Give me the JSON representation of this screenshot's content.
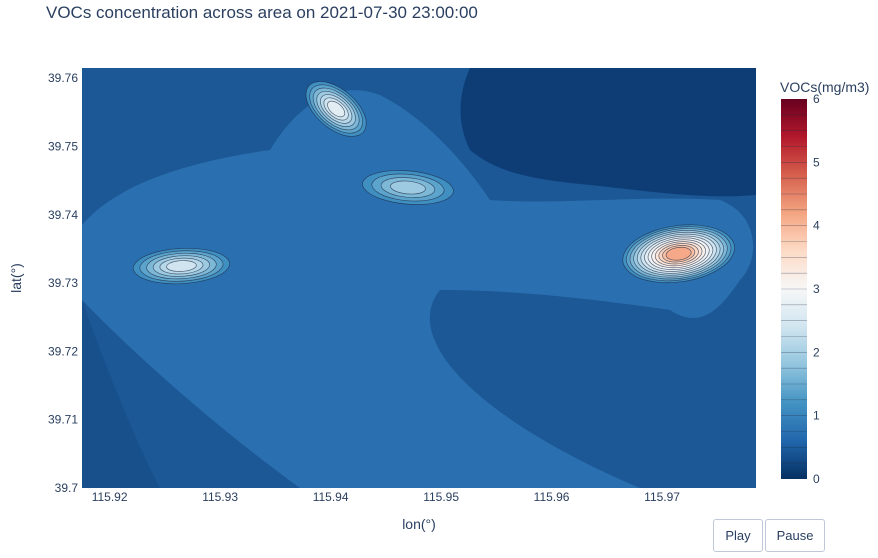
{
  "chart_data": {
    "type": "contour",
    "title": "VOCs concentration across area on 2021-07-30 23:00:00",
    "xlabel": "lon(°)",
    "ylabel": "lat(°)",
    "xlim": [
      115.9175,
      115.9785
    ],
    "ylim": [
      39.7,
      39.7615
    ],
    "x_ticks": [
      "115.92",
      "115.93",
      "115.94",
      "115.95",
      "115.96",
      "115.97"
    ],
    "x_tick_values": [
      115.92,
      115.93,
      115.94,
      115.95,
      115.96,
      115.97
    ],
    "y_ticks": [
      "39.7",
      "39.71",
      "39.72",
      "39.73",
      "39.74",
      "39.75",
      "39.76"
    ],
    "y_tick_values": [
      39.7,
      39.71,
      39.72,
      39.73,
      39.74,
      39.75,
      39.76
    ],
    "colorbar": {
      "title": "VOCs(mg/m3)",
      "range": [
        0,
        6
      ],
      "ticks": [
        "0",
        "1",
        "2",
        "3",
        "4",
        "5",
        "6"
      ],
      "tick_values": [
        0,
        1,
        2,
        3,
        4,
        5,
        6
      ],
      "colorscale": "RdBu (reversed)",
      "contour_step": 0.25
    },
    "hotspots": [
      {
        "lon": 115.9715,
        "lat": 39.7343,
        "value": 4.4
      },
      {
        "lon": 115.9405,
        "lat": 39.7555,
        "value": 2.7
      },
      {
        "lon": 115.9265,
        "lat": 39.7325,
        "value": 2.5
      },
      {
        "lon": 115.947,
        "lat": 39.744,
        "value": 2.0
      }
    ],
    "background_level": 0.9
  },
  "controls": {
    "play_label": "Play",
    "pause_label": "Pause"
  }
}
